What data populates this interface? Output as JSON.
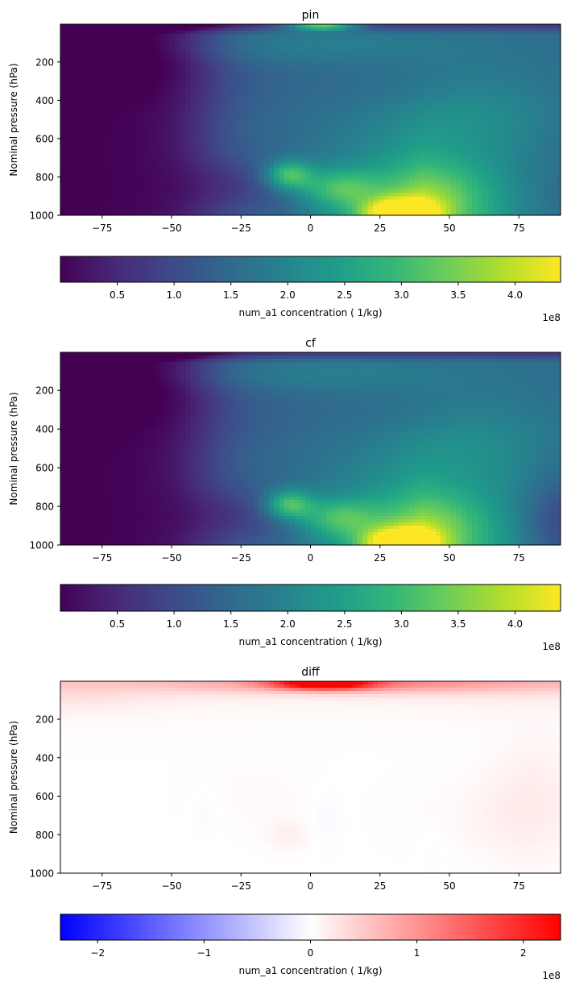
{
  "chart_data": [
    {
      "type": "heatmap",
      "title": "pin",
      "ylabel": "Nominal pressure (hPa)",
      "xlabel": "",
      "x_ticks": [
        -75,
        -50,
        -25,
        0,
        25,
        50,
        75
      ],
      "x_tick_labels": [
        "−75",
        "−50",
        "−25",
        "0",
        "25",
        "50",
        "75"
      ],
      "xlim": [
        -90,
        90
      ],
      "y_ticks": [
        200,
        400,
        600,
        800,
        1000
      ],
      "y_tick_labels": [
        "200",
        "400",
        "600",
        "800",
        "1000"
      ],
      "ylim": [
        1000,
        3
      ],
      "y_inverted": true,
      "colormap": "viridis",
      "colorbar": {
        "label": "num_a1 concentration ( 1/kg)",
        "ticks": [
          0.5,
          1.0,
          1.5,
          2.0,
          2.5,
          3.0,
          3.5,
          4.0
        ],
        "tick_labels": [
          "0.5",
          "1.0",
          "1.5",
          "2.0",
          "2.5",
          "3.0",
          "3.5",
          "4.0"
        ],
        "range": [
          0.0,
          4.4
        ],
        "offset_text": "1e8",
        "orientation": "horizontal"
      },
      "features": [
        {
          "lat": -68,
          "p": 650,
          "value": 0.05
        },
        {
          "lat": -30,
          "p": 300,
          "value": 1.2
        },
        {
          "lat": 0,
          "p": 120,
          "value": 1.3
        },
        {
          "lat": 3,
          "p": 10,
          "value": 2.5
        },
        {
          "lat": -8,
          "p": 790,
          "value": 3.2
        },
        {
          "lat": 10,
          "p": 860,
          "value": 2.9
        },
        {
          "lat": 32,
          "p": 980,
          "value": 4.4
        },
        {
          "lat": 60,
          "p": 400,
          "value": 2.1
        },
        {
          "lat": 88,
          "p": 950,
          "value": 1.3
        }
      ]
    },
    {
      "type": "heatmap",
      "title": "cf",
      "ylabel": "Nominal pressure (hPa)",
      "xlabel": "",
      "x_ticks": [
        -75,
        -50,
        -25,
        0,
        25,
        50,
        75
      ],
      "x_tick_labels": [
        "−75",
        "−50",
        "−25",
        "0",
        "25",
        "50",
        "75"
      ],
      "xlim": [
        -90,
        90
      ],
      "y_ticks": [
        200,
        400,
        600,
        800,
        1000
      ],
      "y_tick_labels": [
        "200",
        "400",
        "600",
        "800",
        "1000"
      ],
      "ylim": [
        1000,
        3
      ],
      "y_inverted": true,
      "colormap": "viridis",
      "colorbar": {
        "label": "num_a1 concentration ( 1/kg)",
        "ticks": [
          0.5,
          1.0,
          1.5,
          2.0,
          2.5,
          3.0,
          3.5,
          4.0
        ],
        "tick_labels": [
          "0.5",
          "1.0",
          "1.5",
          "2.0",
          "2.5",
          "3.0",
          "3.5",
          "4.0"
        ],
        "range": [
          0.0,
          4.4
        ],
        "offset_text": "1e8",
        "orientation": "horizontal"
      },
      "features": [
        {
          "lat": -68,
          "p": 650,
          "value": 0.05
        },
        {
          "lat": -30,
          "p": 300,
          "value": 1.1
        },
        {
          "lat": 0,
          "p": 120,
          "value": 1.1
        },
        {
          "lat": 3,
          "p": 10,
          "value": 0.4
        },
        {
          "lat": -8,
          "p": 790,
          "value": 3.2
        },
        {
          "lat": 10,
          "p": 860,
          "value": 2.9
        },
        {
          "lat": 32,
          "p": 980,
          "value": 4.4
        },
        {
          "lat": 60,
          "p": 400,
          "value": 1.9
        },
        {
          "lat": 88,
          "p": 950,
          "value": 0.3
        }
      ]
    },
    {
      "type": "heatmap",
      "title": "diff",
      "ylabel": "Nominal pressure (hPa)",
      "xlabel": "",
      "x_ticks": [
        -75,
        -50,
        -25,
        0,
        25,
        50,
        75
      ],
      "x_tick_labels": [
        "−75",
        "−50",
        "−25",
        "0",
        "25",
        "50",
        "75"
      ],
      "xlim": [
        -90,
        90
      ],
      "y_ticks": [
        200,
        400,
        600,
        800,
        1000
      ],
      "y_tick_labels": [
        "200",
        "400",
        "600",
        "800",
        "1000"
      ],
      "ylim": [
        1000,
        3
      ],
      "y_inverted": true,
      "colormap": "bwr",
      "colorbar": {
        "label": "num_a1 concentration ( 1/kg)",
        "ticks": [
          -2,
          -1,
          0,
          1,
          2
        ],
        "tick_labels": [
          "−2",
          "−1",
          "0",
          "1",
          "2"
        ],
        "range": [
          -2.35,
          2.35
        ],
        "offset_text": "1e8",
        "orientation": "horizontal"
      },
      "features": [
        {
          "lat": 5,
          "p": 10,
          "value": 2.3
        },
        {
          "lat": -60,
          "p": 80,
          "value": 0.5
        },
        {
          "lat": 60,
          "p": 80,
          "value": 0.4
        },
        {
          "lat": 80,
          "p": 600,
          "value": 0.15
        },
        {
          "lat": -8,
          "p": 800,
          "value": 0.15
        },
        {
          "lat": 5,
          "p": 700,
          "value": -0.05
        }
      ]
    }
  ]
}
